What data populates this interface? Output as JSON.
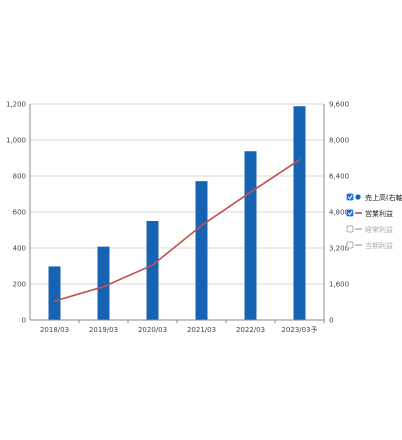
{
  "chart_data": {
    "type": "bar",
    "categories": [
      "2018/03",
      "2019/03",
      "2020/03",
      "2021/03",
      "2022/03",
      "2023/03予"
    ],
    "left_axis": {
      "min": 0,
      "max": 1200,
      "ticks": [
        "0",
        "200",
        "400",
        "600",
        "800",
        "1,000",
        "1,200"
      ]
    },
    "right_axis": {
      "min": 0,
      "max": 9600,
      "ticks": [
        "0",
        "1,600",
        "3,200",
        "4,800",
        "6,400",
        "8,000",
        "9,600"
      ]
    },
    "grid": true,
    "legend_position": "right",
    "series": [
      {
        "name": "売上高(右軸)",
        "type": "bar",
        "axis": "right",
        "color": "#1763b3",
        "checked": true,
        "values": [
          2380,
          3260,
          4400,
          6170,
          7500,
          9500
        ]
      },
      {
        "name": "営業利益",
        "type": "line",
        "axis": "left",
        "color": "#c0504d",
        "checked": true,
        "values": [
          105,
          185,
          305,
          525,
          710,
          890
        ]
      },
      {
        "name": "経常利益",
        "type": "line",
        "axis": "left",
        "color": "#bbbbbb",
        "checked": false
      },
      {
        "name": "当期利益",
        "type": "line",
        "axis": "left",
        "color": "#bbbbbb",
        "checked": false
      }
    ]
  }
}
